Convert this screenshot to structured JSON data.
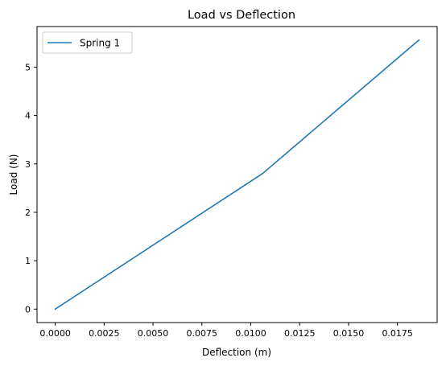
{
  "chart_data": {
    "type": "line",
    "title": "Load vs Deflection",
    "xlabel": "Deflection (m)",
    "ylabel": "Load (N)",
    "xlim": [
      -0.00093,
      0.01953
    ],
    "ylim": [
      -0.278,
      5.838
    ],
    "xticks": [
      0.0,
      0.0025,
      0.005,
      0.0075,
      0.01,
      0.0125,
      0.015,
      0.0175
    ],
    "xtick_labels": [
      "0.0000",
      "0.0025",
      "0.0050",
      "0.0075",
      "0.0100",
      "0.0125",
      "0.0150",
      "0.0175"
    ],
    "yticks": [
      0,
      1,
      2,
      3,
      4,
      5
    ],
    "ytick_labels": [
      "0",
      "1",
      "2",
      "3",
      "4",
      "5"
    ],
    "grid": false,
    "legend_position": "upper-left",
    "series": [
      {
        "name": "Spring 1",
        "color": "#1f77b4",
        "x": [
          0.0,
          0.0106,
          0.0186
        ],
        "y": [
          0.0,
          2.8,
          5.56
        ]
      }
    ]
  }
}
